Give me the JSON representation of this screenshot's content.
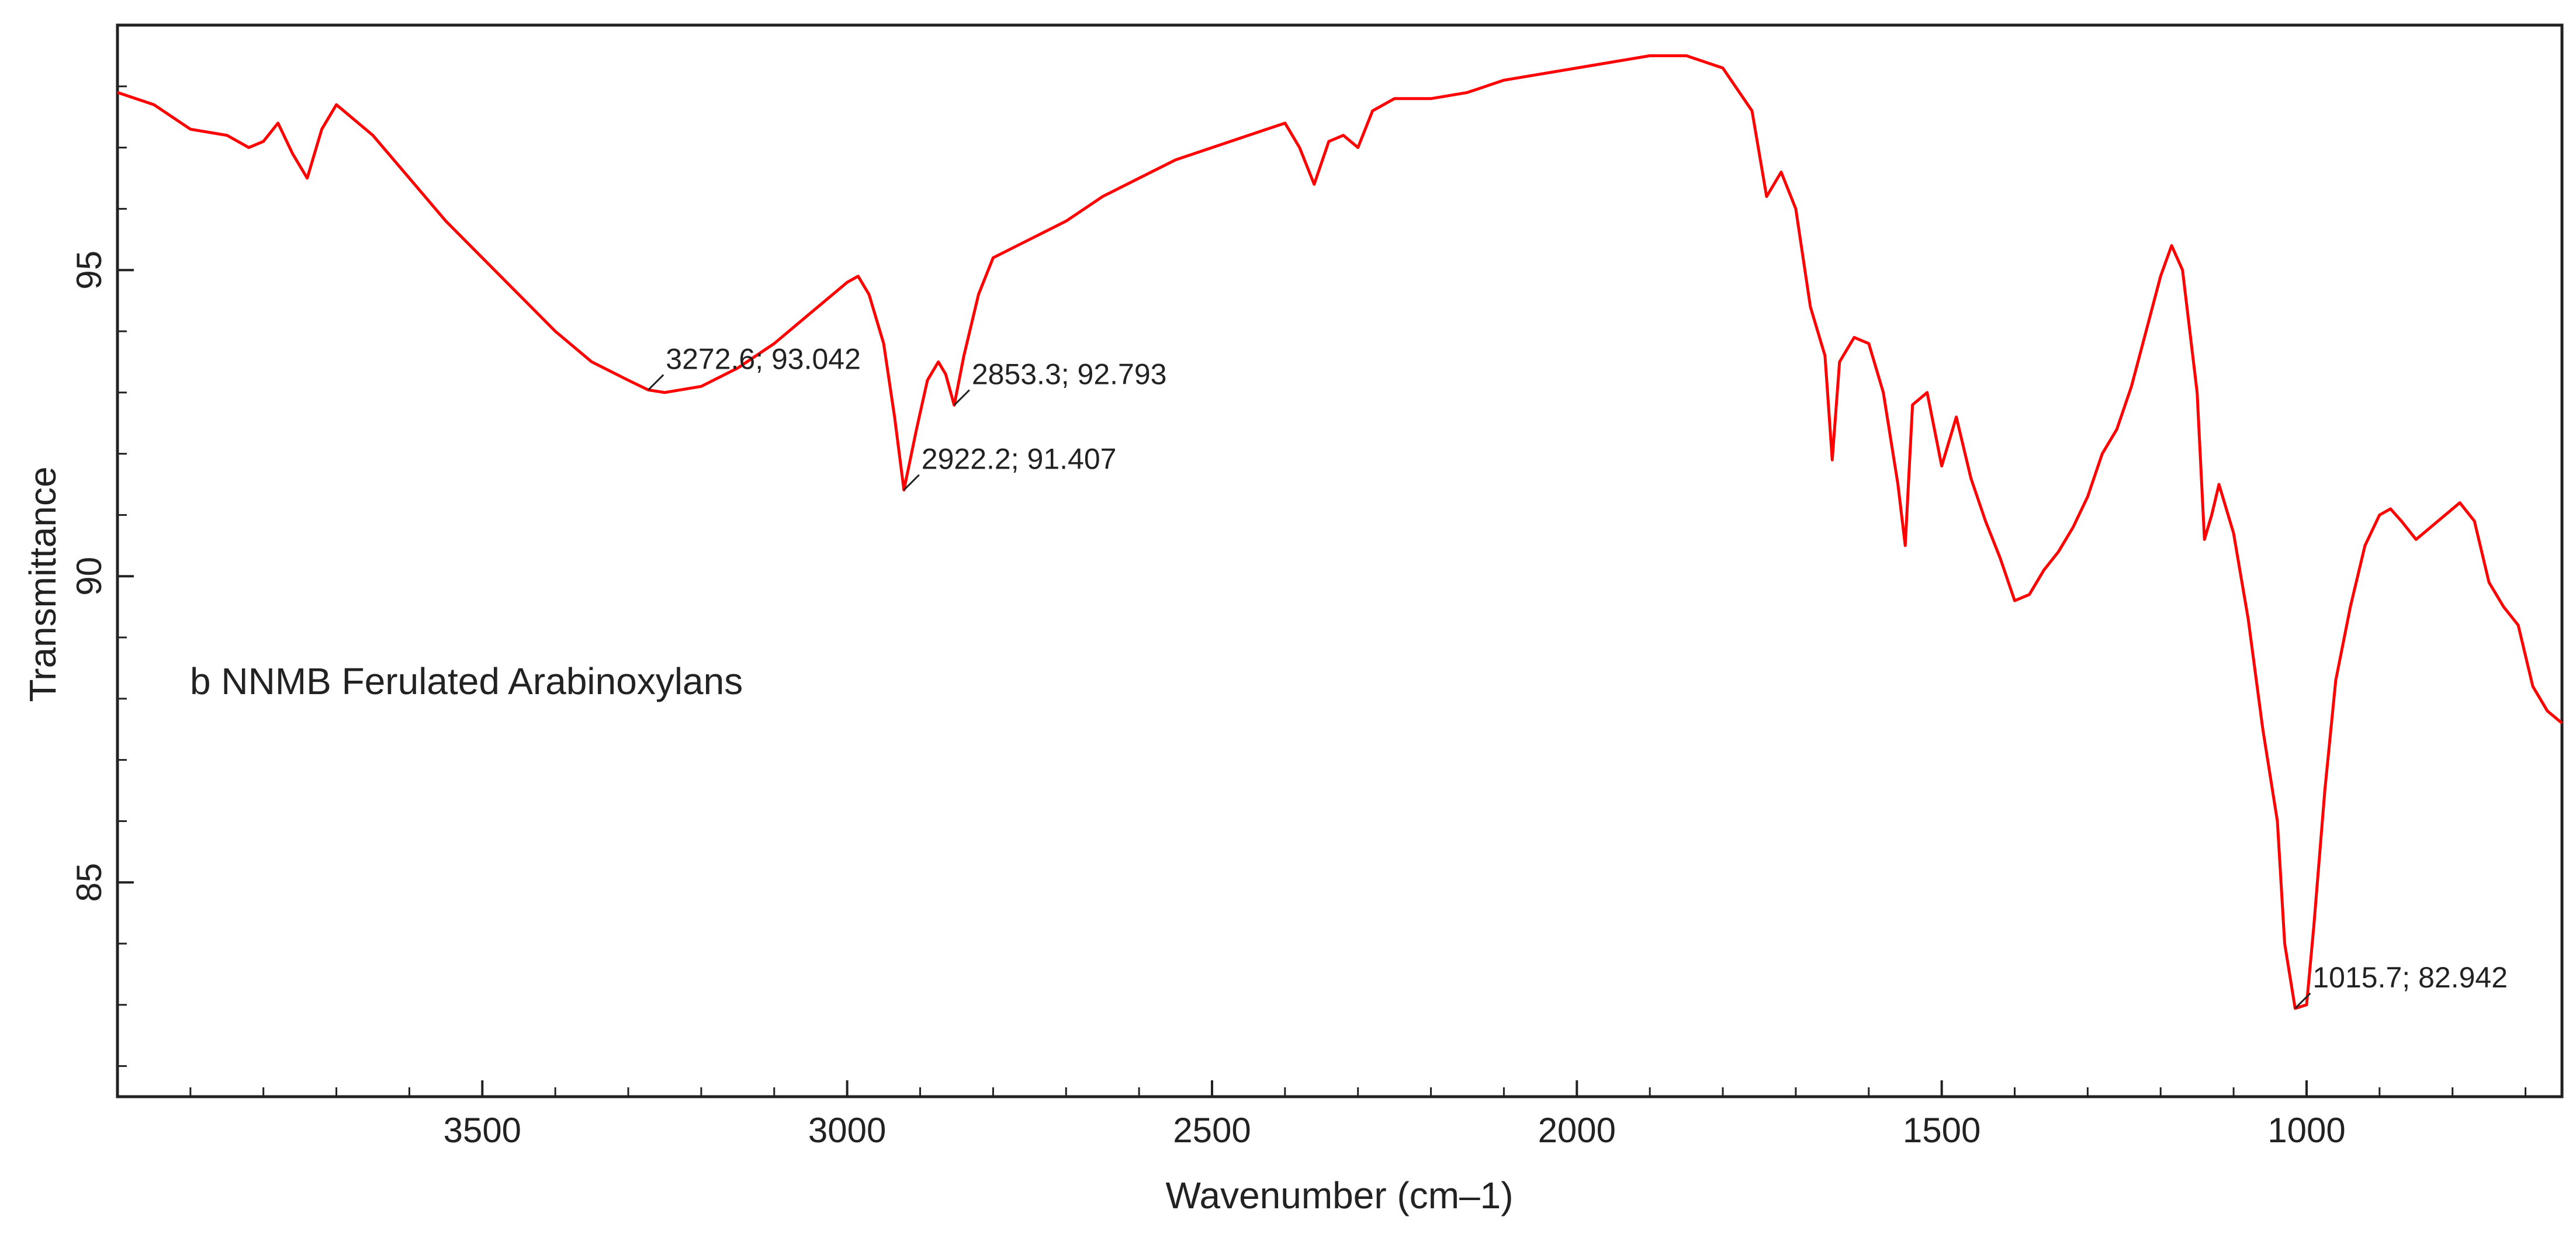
{
  "chart_data": {
    "type": "line",
    "title": "",
    "xlabel": "Wavenumber (cm–1)",
    "ylabel": "Transmittance",
    "xlim": [
      4000,
      650
    ],
    "ylim": [
      81.5,
      99
    ],
    "x_ticks": [
      3500,
      3000,
      2500,
      2000,
      1500,
      1000
    ],
    "y_ticks": [
      85,
      90,
      95
    ],
    "grid": false,
    "inset_label": "b NNMB Ferulated Arabinoxylans",
    "series": [
      {
        "color": "#ff0000",
        "points": [
          [
            4000,
            97.9
          ],
          [
            3950,
            97.7
          ],
          [
            3900,
            97.3
          ],
          [
            3850,
            97.2
          ],
          [
            3820,
            97.0
          ],
          [
            3800,
            97.1
          ],
          [
            3780,
            97.4
          ],
          [
            3760,
            96.9
          ],
          [
            3740,
            96.5
          ],
          [
            3720,
            97.3
          ],
          [
            3700,
            97.7
          ],
          [
            3680,
            97.5
          ],
          [
            3650,
            97.2
          ],
          [
            3600,
            96.5
          ],
          [
            3550,
            95.8
          ],
          [
            3500,
            95.2
          ],
          [
            3450,
            94.6
          ],
          [
            3400,
            94.0
          ],
          [
            3350,
            93.5
          ],
          [
            3300,
            93.2
          ],
          [
            3272.6,
            93.042
          ],
          [
            3250,
            93.0
          ],
          [
            3200,
            93.1
          ],
          [
            3150,
            93.4
          ],
          [
            3100,
            93.8
          ],
          [
            3050,
            94.3
          ],
          [
            3000,
            94.8
          ],
          [
            2985,
            94.9
          ],
          [
            2970,
            94.6
          ],
          [
            2950,
            93.8
          ],
          [
            2935,
            92.6
          ],
          [
            2922.2,
            91.407
          ],
          [
            2905,
            92.4
          ],
          [
            2890,
            93.2
          ],
          [
            2875,
            93.5
          ],
          [
            2865,
            93.3
          ],
          [
            2853.3,
            92.793
          ],
          [
            2840,
            93.6
          ],
          [
            2820,
            94.6
          ],
          [
            2800,
            95.2
          ],
          [
            2750,
            95.5
          ],
          [
            2700,
            95.8
          ],
          [
            2650,
            96.2
          ],
          [
            2600,
            96.5
          ],
          [
            2550,
            96.8
          ],
          [
            2500,
            97.0
          ],
          [
            2450,
            97.2
          ],
          [
            2400,
            97.4
          ],
          [
            2380,
            97.0
          ],
          [
            2360,
            96.4
          ],
          [
            2340,
            97.1
          ],
          [
            2320,
            97.2
          ],
          [
            2300,
            97.0
          ],
          [
            2280,
            97.6
          ],
          [
            2250,
            97.8
          ],
          [
            2200,
            97.8
          ],
          [
            2150,
            97.9
          ],
          [
            2100,
            98.1
          ],
          [
            2050,
            98.2
          ],
          [
            2000,
            98.3
          ],
          [
            1950,
            98.4
          ],
          [
            1900,
            98.5
          ],
          [
            1850,
            98.5
          ],
          [
            1800,
            98.3
          ],
          [
            1760,
            97.6
          ],
          [
            1740,
            96.2
          ],
          [
            1720,
            96.6
          ],
          [
            1700,
            96.0
          ],
          [
            1680,
            94.4
          ],
          [
            1660,
            93.6
          ],
          [
            1650,
            91.9
          ],
          [
            1640,
            93.5
          ],
          [
            1620,
            93.9
          ],
          [
            1600,
            93.8
          ],
          [
            1580,
            93.0
          ],
          [
            1560,
            91.5
          ],
          [
            1550,
            90.5
          ],
          [
            1540,
            92.8
          ],
          [
            1520,
            93.0
          ],
          [
            1500,
            91.8
          ],
          [
            1480,
            92.6
          ],
          [
            1460,
            91.6
          ],
          [
            1440,
            90.9
          ],
          [
            1420,
            90.3
          ],
          [
            1400,
            89.6
          ],
          [
            1380,
            89.7
          ],
          [
            1360,
            90.1
          ],
          [
            1340,
            90.4
          ],
          [
            1320,
            90.8
          ],
          [
            1300,
            91.3
          ],
          [
            1280,
            92.0
          ],
          [
            1260,
            92.4
          ],
          [
            1240,
            93.1
          ],
          [
            1220,
            94.0
          ],
          [
            1200,
            94.9
          ],
          [
            1185,
            95.4
          ],
          [
            1170,
            95.0
          ],
          [
            1150,
            93.0
          ],
          [
            1140,
            90.6
          ],
          [
            1130,
            91.0
          ],
          [
            1120,
            91.5
          ],
          [
            1100,
            90.7
          ],
          [
            1080,
            89.3
          ],
          [
            1060,
            87.5
          ],
          [
            1040,
            86.0
          ],
          [
            1030,
            84.0
          ],
          [
            1015.7,
            82.942
          ],
          [
            1000,
            83.0
          ],
          [
            990,
            84.3
          ],
          [
            975,
            86.5
          ],
          [
            960,
            88.3
          ],
          [
            940,
            89.5
          ],
          [
            920,
            90.5
          ],
          [
            900,
            91.0
          ],
          [
            885,
            91.1
          ],
          [
            870,
            90.9
          ],
          [
            850,
            90.6
          ],
          [
            830,
            90.8
          ],
          [
            810,
            91.0
          ],
          [
            790,
            91.2
          ],
          [
            770,
            90.9
          ],
          [
            750,
            89.9
          ],
          [
            730,
            89.5
          ],
          [
            710,
            89.2
          ],
          [
            690,
            88.2
          ],
          [
            670,
            87.8
          ],
          [
            650,
            87.6
          ]
        ]
      }
    ],
    "annotations": [
      {
        "x": 3272.6,
        "y": 93.042,
        "text": "3272.6; 93.042"
      },
      {
        "x": 2922.2,
        "y": 91.407,
        "text": "2922.2; 91.407"
      },
      {
        "x": 2853.3,
        "y": 92.793,
        "text": "2853.3; 92.793"
      },
      {
        "x": 1015.7,
        "y": 82.942,
        "text": "1015.7; 82.942"
      }
    ]
  }
}
